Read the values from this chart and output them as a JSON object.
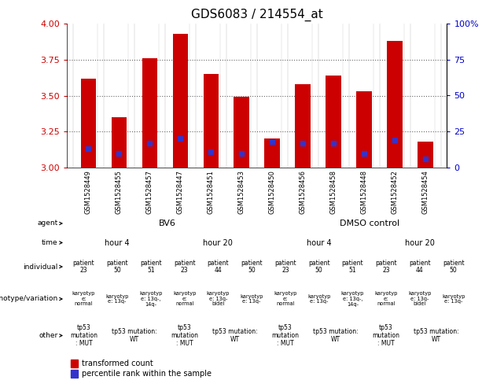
{
  "title": "GDS6083 / 214554_at",
  "bar_labels": [
    "GSM1528449",
    "GSM1528455",
    "GSM1528457",
    "GSM1528447",
    "GSM1528451",
    "GSM1528453",
    "GSM1528450",
    "GSM1528456",
    "GSM1528458",
    "GSM1528448",
    "GSM1528452",
    "GSM1528454"
  ],
  "bar_values": [
    3.62,
    3.35,
    3.76,
    3.93,
    3.65,
    3.49,
    3.2,
    3.58,
    3.64,
    3.53,
    3.88,
    3.18
  ],
  "percentile_values": [
    3.13,
    3.1,
    3.17,
    3.2,
    3.11,
    3.1,
    3.18,
    3.17,
    3.17,
    3.1,
    3.19,
    3.06
  ],
  "ylim_left": [
    3.0,
    4.0
  ],
  "ylim_right": [
    0,
    100
  ],
  "yticks_left": [
    3.0,
    3.25,
    3.5,
    3.75,
    4.0
  ],
  "yticks_right": [
    0,
    25,
    50,
    75,
    100
  ],
  "bar_color": "#cc0000",
  "percentile_color": "#3333cc",
  "grid_color": "#555555",
  "bg_color": "#ffffff",
  "tick_color_left": "#cc0000",
  "tick_color_right": "#0000cc",
  "agent_spans": [
    [
      0,
      6,
      "BV6",
      "#aaeebb"
    ],
    [
      6,
      12,
      "DMSO control",
      "#66cc77"
    ]
  ],
  "time_spans": [
    [
      0,
      3,
      "hour 4",
      "#aaddee"
    ],
    [
      3,
      6,
      "hour 20",
      "#55bbcc"
    ],
    [
      6,
      9,
      "hour 4",
      "#aaddee"
    ],
    [
      9,
      12,
      "hour 20",
      "#55bbcc"
    ]
  ],
  "indiv_nums": [
    "23",
    "50",
    "51",
    "23",
    "44",
    "50",
    "23",
    "50",
    "51",
    "23",
    "44",
    "50"
  ],
  "indiv_colors": [
    "#ddaadd",
    "#cc88cc",
    "#bb66bb",
    "#ddaadd",
    "#cc88cc",
    "#bb66bb",
    "#ddaadd",
    "#cc88cc",
    "#bb66bb",
    "#ddaadd",
    "#cc88cc",
    "#bb66bb"
  ],
  "geno_colors": [
    "#ffffff",
    "#ff99bb",
    "#ff55bb",
    "#ffffff",
    "#ff99bb",
    "#ff99bb",
    "#ffffff",
    "#ff99bb",
    "#ff55bb",
    "#ffffff",
    "#ff99bb",
    "#ff99bb"
  ],
  "geno_texts": [
    "karyotyp\ne:\nnormal",
    "karyotyp\ne: 13q-",
    "karyotyp\ne: 13q-,\n14q-",
    "karyotyp\ne:\nnormal",
    "karyotyp\ne: 13q-\nbidel",
    "karyotyp\ne: 13q-",
    "karyotyp\ne:\nnormal",
    "karyotyp\ne: 13q-",
    "karyotyp\ne: 13q-,\n14q-",
    "karyotyp\ne:\nnormal",
    "karyotyp\ne: 13q-\nbidel",
    "karyotyp\ne: 13q-"
  ],
  "other_merged": [
    [
      0,
      1,
      "#ee8888",
      "tp53\nmutation\n: MUT"
    ],
    [
      1,
      3,
      "#eeee88",
      "tp53 mutation:\nWT"
    ],
    [
      3,
      4,
      "#ee8888",
      "tp53\nmutation\n: MUT"
    ],
    [
      4,
      6,
      "#eeee88",
      "tp53 mutation:\nWT"
    ],
    [
      6,
      7,
      "#ee8888",
      "tp53\nmutation\n: MUT"
    ],
    [
      7,
      9,
      "#eeee88",
      "tp53 mutation:\nWT"
    ],
    [
      9,
      10,
      "#ee8888",
      "tp53\nmutation\n: MUT"
    ],
    [
      10,
      12,
      "#eeee88",
      "tp53 mutation:\nWT"
    ]
  ],
  "row_labels": [
    "agent",
    "time",
    "individual",
    "genotype/variation",
    "other"
  ]
}
